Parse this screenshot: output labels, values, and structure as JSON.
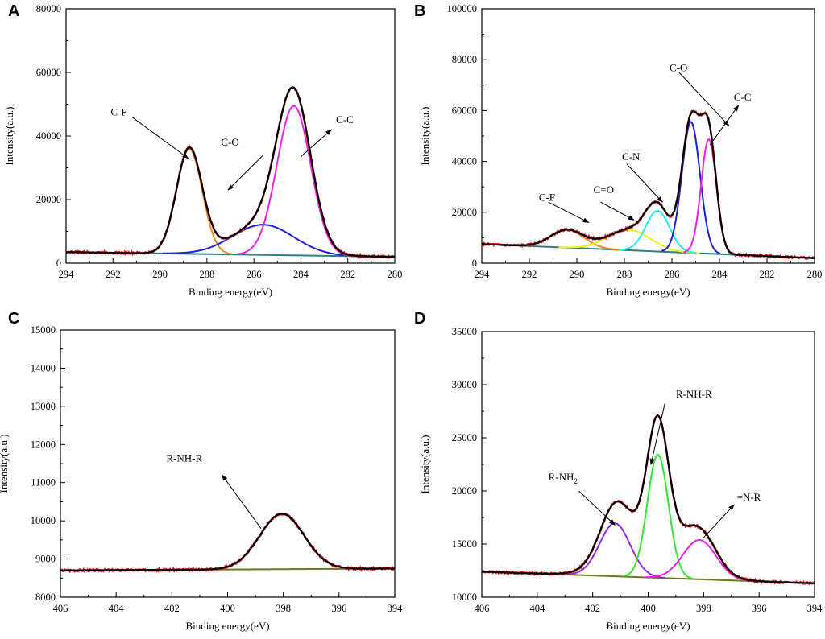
{
  "chart_data": [
    {
      "panel": "A",
      "type": "line",
      "xlabel": "Binding energy(eV)",
      "ylabel": "Intensity(a.u.)",
      "xlim": [
        294,
        280
      ],
      "ylim": [
        0,
        80000
      ],
      "xticks": [
        294,
        292,
        290,
        288,
        286,
        284,
        282,
        280
      ],
      "yticks": [
        0,
        20000,
        40000,
        60000,
        80000
      ],
      "background": {
        "x": [
          294,
          280
        ],
        "y": [
          3500,
          2000
        ]
      },
      "peaks": [
        {
          "label": "C-F",
          "center": 288.75,
          "height": 33000,
          "sigma": 0.55,
          "color": "#f28522"
        },
        {
          "label": "C-O",
          "center": 285.6,
          "height": 9500,
          "sigma": 1.3,
          "color": "#1f1fd6"
        },
        {
          "label": "C-C",
          "center": 284.3,
          "height": 47000,
          "sigma": 0.72,
          "color": "#ee20ee"
        }
      ],
      "envelope_color": "#000000",
      "raw_color": "#e02020",
      "background_color": "#2f7f7f",
      "annotations": [
        {
          "text": "C-F",
          "text_x": 292.1,
          "text_y": 46500,
          "arrow_from": [
            291.2,
            46000
          ],
          "arrow_to": [
            288.8,
            33000
          ]
        },
        {
          "text": "C-O",
          "text_x": 287.4,
          "text_y": 37000,
          "arrow_from": [
            285.6,
            34000
          ],
          "arrow_to": [
            287.1,
            23000
          ]
        },
        {
          "text": "C-C",
          "text_x": 282.5,
          "text_y": 44000,
          "arrow_from": [
            284.0,
            33500
          ],
          "arrow_to": [
            282.7,
            42000
          ]
        }
      ]
    },
    {
      "panel": "B",
      "type": "line",
      "xlabel": "Binding energy(eV)",
      "ylabel": "Intensity(a.u.)",
      "xlim": [
        294,
        280
      ],
      "ylim": [
        0,
        100000
      ],
      "xticks": [
        294,
        292,
        290,
        288,
        286,
        284,
        282,
        280
      ],
      "yticks": [
        0,
        20000,
        40000,
        60000,
        80000,
        100000
      ],
      "background": {
        "x": [
          294,
          280
        ],
        "y": [
          7500,
          2000
        ]
      },
      "peaks": [
        {
          "label": "C-F",
          "center": 290.4,
          "height": 7000,
          "sigma": 0.7,
          "color": "#f28522"
        },
        {
          "label": "C=O",
          "center": 287.8,
          "height": 8000,
          "sigma": 0.9,
          "color": "#f2f21a"
        },
        {
          "label": "C-N",
          "center": 286.6,
          "height": 16000,
          "sigma": 0.5,
          "color": "#22ecec"
        },
        {
          "label": "C-O",
          "center": 285.2,
          "height": 51500,
          "sigma": 0.38,
          "color": "#1f1fd6"
        },
        {
          "label": "C-C",
          "center": 284.45,
          "height": 45000,
          "sigma": 0.32,
          "color": "#ee20ee"
        }
      ],
      "envelope_color": "#000000",
      "raw_color": "#e02020",
      "background_color": "#2f7f7f",
      "annotations": [
        {
          "text": "C-F",
          "text_x": 291.6,
          "text_y": 24500,
          "arrow_from": [
            291.2,
            24000
          ],
          "arrow_to": [
            289.5,
            16000
          ]
        },
        {
          "text": "C=O",
          "text_x": 289.3,
          "text_y": 27500,
          "arrow_from": [
            289.0,
            24000
          ],
          "arrow_to": [
            287.6,
            17000
          ]
        },
        {
          "text": "C-N",
          "text_x": 288.1,
          "text_y": 40500,
          "arrow_from": [
            287.9,
            39000
          ],
          "arrow_to": [
            286.4,
            24000
          ]
        },
        {
          "text": "C-O",
          "text_x": 286.1,
          "text_y": 75500,
          "arrow_from": [
            285.7,
            75000
          ],
          "arrow_to": [
            283.6,
            54000
          ]
        },
        {
          "text": "C-C",
          "text_x": 283.4,
          "text_y": 64000,
          "arrow_from": [
            284.4,
            46500
          ],
          "arrow_to": [
            283.2,
            62000
          ]
        }
      ]
    },
    {
      "panel": "C",
      "type": "line",
      "xlabel": "Binding energy(eV)",
      "ylabel": "Intensity(a.u.)",
      "xlim": [
        406,
        394
      ],
      "ylim": [
        8000,
        15000
      ],
      "xticks": [
        406,
        404,
        402,
        400,
        398,
        396,
        394
      ],
      "yticks": [
        8000,
        9000,
        10000,
        11000,
        12000,
        13000,
        14000,
        15000
      ],
      "background": {
        "x": [
          406,
          394
        ],
        "y": [
          8700,
          8750
        ]
      },
      "peaks": [
        {
          "label": "R-NH-R",
          "center": 398.05,
          "height": 1450,
          "sigma": 0.8,
          "color": "#32e632"
        }
      ],
      "envelope_color": "#000000",
      "raw_color": "#e02020",
      "background_color": "#6b7a1a",
      "annotations": [
        {
          "text": "R-NH-R",
          "text_x": 402.2,
          "text_y": 11550,
          "arrow_from": [
            398.8,
            9800
          ],
          "arrow_to": [
            400.2,
            11200
          ]
        }
      ]
    },
    {
      "panel": "D",
      "type": "line",
      "xlabel": "Binding energy(eV)",
      "ylabel": "Intensity(a.u.)",
      "xlim": [
        406,
        394
      ],
      "ylim": [
        10000,
        35000
      ],
      "xticks": [
        406,
        404,
        402,
        400,
        398,
        396,
        394
      ],
      "yticks": [
        10000,
        15000,
        20000,
        25000,
        30000,
        35000
      ],
      "background": {
        "x": [
          406,
          394
        ],
        "y": [
          12400,
          11300
        ]
      },
      "peaks": [
        {
          "label": "R-NH2",
          "center": 401.2,
          "height": 5000,
          "sigma": 0.55,
          "color": "#8a2be2"
        },
        {
          "label": "R-NH-R",
          "center": 399.65,
          "height": 11600,
          "sigma": 0.38,
          "color": "#32e632"
        },
        {
          "label": "=N-R",
          "center": 398.15,
          "height": 3700,
          "sigma": 0.6,
          "color": "#ee20ee"
        }
      ],
      "extra_broad_component": {
        "center": 399.9,
        "height": 3500,
        "sigma": 1.2
      },
      "envelope_color": "#000000",
      "raw_color": "#e02020",
      "background_color": "#6b7a1a",
      "annotations": [
        {
          "text": "R-NH-R",
          "text_x": 399.0,
          "text_y": 28800,
          "arrow_from": [
            399.4,
            28200
          ],
          "arrow_to": [
            399.9,
            22500
          ]
        },
        {
          "text": "=N-R",
          "text_x": 396.8,
          "text_y": 19100,
          "arrow_from": [
            398.0,
            15600
          ],
          "arrow_to": [
            396.9,
            18700
          ]
        }
      ],
      "label_r_nh2": {
        "main": "R-NH",
        "sub": "2",
        "text_x": 403.6,
        "text_y": 21000,
        "arrow_from": [
          402.5,
          20000
        ],
        "arrow_to": [
          401.2,
          16800
        ]
      }
    }
  ]
}
